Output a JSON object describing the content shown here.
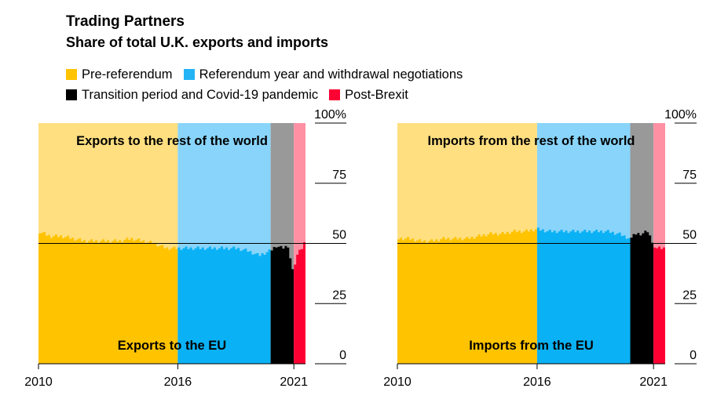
{
  "title": "Trading Partners",
  "subtitle": "Share of total U.K. exports and imports",
  "legend": [
    {
      "label": "Pre-referendum",
      "color": "#FFC300"
    },
    {
      "label": "Referendum year and withdrawal negotiations",
      "color": "#22B4F5"
    },
    {
      "label": "Transition period and Covid-19 pandemic",
      "color": "#000000"
    },
    {
      "label": "Post-Brexit",
      "color": "#FF0033"
    }
  ],
  "colors": {
    "pre_light": "#FFDF80",
    "pre_dark": "#FFC300",
    "ref_light": "#88D4FA",
    "ref_dark": "#0AB1F5",
    "trans_light": "#999999",
    "trans_dark": "#000000",
    "post_light": "#FF90A4",
    "post_dark": "#FF0033"
  },
  "chart_data": [
    {
      "type": "area",
      "title": "",
      "top_label": "Exports to the rest of the world",
      "bottom_label": "Exports to the EU",
      "x_ticks": [
        "2010",
        "2016",
        "2021"
      ],
      "y_ticks": [
        "0",
        "25",
        "50",
        "75",
        "100%"
      ],
      "ylim": [
        0,
        100
      ],
      "xlim": [
        2010.0,
        2021.5
      ],
      "reference_line": 50,
      "periods": [
        {
          "name": "Pre-referendum",
          "start": 2010.0,
          "end": 2016.0
        },
        {
          "name": "Referendum year and withdrawal negotiations",
          "start": 2016.0,
          "end": 2020.0
        },
        {
          "name": "Transition period and Covid-19 pandemic",
          "start": 2020.0,
          "end": 2021.0
        },
        {
          "name": "Post-Brexit",
          "start": 2021.0,
          "end": 2021.5
        }
      ],
      "series": [
        {
          "name": "Exports to the EU",
          "points": [
            [
              2010.0,
              55
            ],
            [
              2010.5,
              53
            ],
            [
              2011.0,
              53
            ],
            [
              2011.5,
              52
            ],
            [
              2012.0,
              51
            ],
            [
              2012.5,
              51
            ],
            [
              2013.0,
              51
            ],
            [
              2013.5,
              51
            ],
            [
              2014.0,
              52
            ],
            [
              2014.5,
              51
            ],
            [
              2015.0,
              50
            ],
            [
              2015.5,
              48
            ],
            [
              2016.0,
              48
            ],
            [
              2016.5,
              48
            ],
            [
              2017.0,
              48
            ],
            [
              2017.5,
              48
            ],
            [
              2018.0,
              48
            ],
            [
              2018.5,
              48
            ],
            [
              2019.0,
              47
            ],
            [
              2019.5,
              45
            ],
            [
              2020.0,
              47
            ],
            [
              2020.25,
              49
            ],
            [
              2020.5,
              48
            ],
            [
              2020.75,
              49
            ],
            [
              2021.0,
              36
            ],
            [
              2021.1,
              45
            ],
            [
              2021.25,
              47
            ],
            [
              2021.4,
              49
            ],
            [
              2021.5,
              52
            ]
          ]
        }
      ]
    },
    {
      "type": "area",
      "title": "",
      "top_label": "Imports from the rest of the world",
      "bottom_label": "Imports from the EU",
      "x_ticks": [
        "2010",
        "2016",
        "2021"
      ],
      "y_ticks": [
        "0",
        "25",
        "50",
        "75",
        "100%"
      ],
      "ylim": [
        0,
        100
      ],
      "xlim": [
        2010.0,
        2021.5
      ],
      "reference_line": 50,
      "periods": [
        {
          "name": "Pre-referendum",
          "start": 2010.0,
          "end": 2016.0
        },
        {
          "name": "Referendum year and withdrawal negotiations",
          "start": 2016.0,
          "end": 2020.0
        },
        {
          "name": "Transition period and Covid-19 pandemic",
          "start": 2020.0,
          "end": 2021.0
        },
        {
          "name": "Post-Brexit",
          "start": 2021.0,
          "end": 2021.5
        }
      ],
      "series": [
        {
          "name": "Imports from the EU",
          "points": [
            [
              2010.0,
              52
            ],
            [
              2010.5,
              52
            ],
            [
              2011.0,
              51
            ],
            [
              2011.5,
              51
            ],
            [
              2012.0,
              52
            ],
            [
              2012.5,
              52
            ],
            [
              2013.0,
              52
            ],
            [
              2013.5,
              53
            ],
            [
              2014.0,
              54
            ],
            [
              2014.5,
              54
            ],
            [
              2015.0,
              55
            ],
            [
              2015.5,
              55
            ],
            [
              2016.0,
              56
            ],
            [
              2016.5,
              55
            ],
            [
              2017.0,
              55
            ],
            [
              2017.5,
              55
            ],
            [
              2018.0,
              55
            ],
            [
              2018.5,
              55
            ],
            [
              2019.0,
              55
            ],
            [
              2019.5,
              54
            ],
            [
              2020.0,
              52
            ],
            [
              2020.25,
              54
            ],
            [
              2020.5,
              54
            ],
            [
              2020.75,
              55
            ],
            [
              2021.0,
              50
            ],
            [
              2021.1,
              48
            ],
            [
              2021.25,
              48
            ],
            [
              2021.4,
              48
            ],
            [
              2021.5,
              48
            ]
          ]
        }
      ]
    }
  ]
}
